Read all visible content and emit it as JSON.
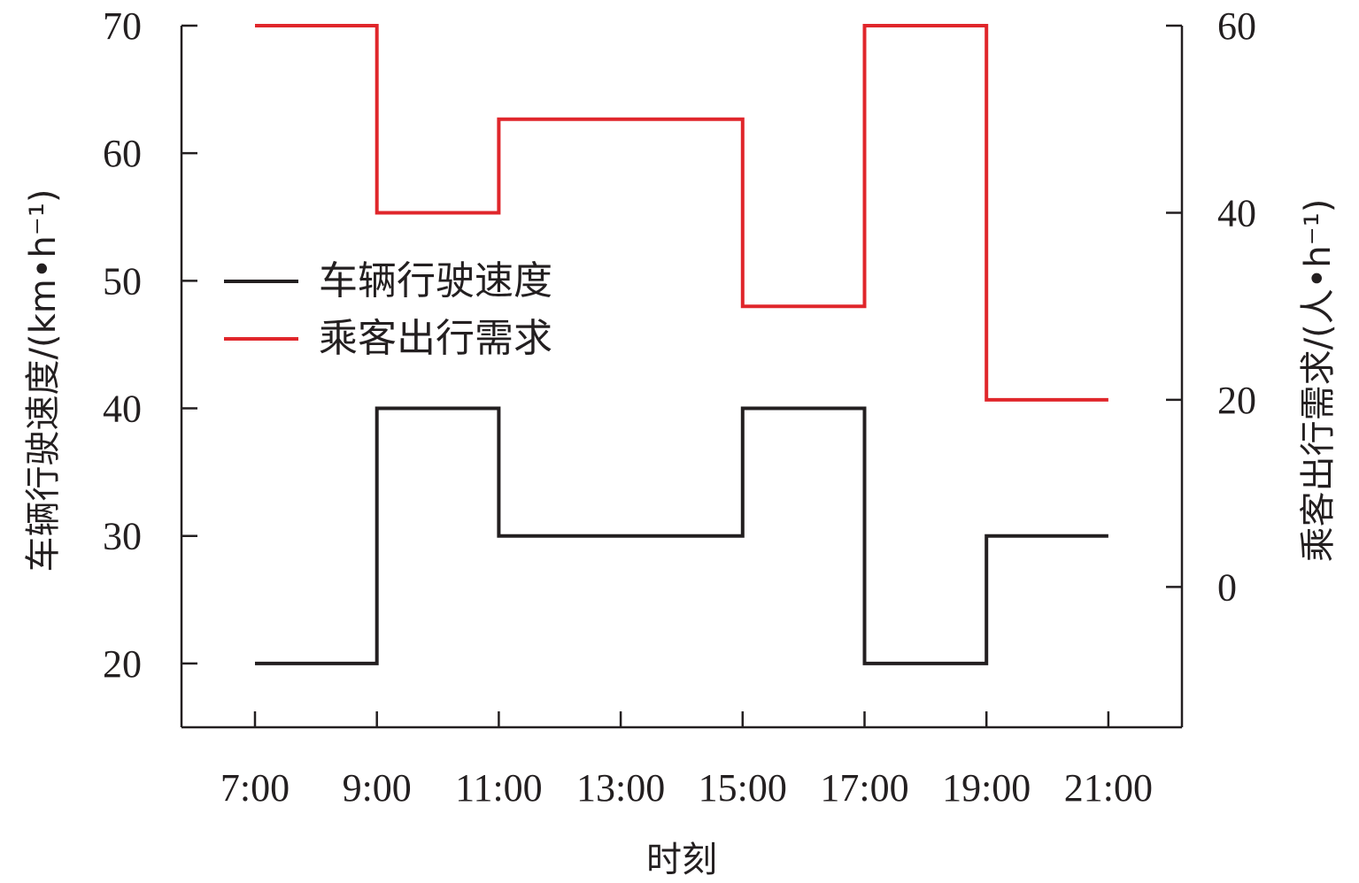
{
  "chart_data": {
    "type": "line",
    "step": true,
    "title": "",
    "x_categories": [
      "7:00",
      "9:00",
      "11:00",
      "13:00",
      "15:00",
      "17:00",
      "19:00",
      "21:00"
    ],
    "xlabel": "时刻",
    "ylabel_left": "车辆行驶速度/(km•h⁻¹)",
    "ylabel_right": "乘客出行需求/(人•h⁻¹)",
    "ylim_left": [
      15,
      70
    ],
    "yticks_left": [
      20,
      30,
      40,
      50,
      60,
      70
    ],
    "ylim_right": [
      -15,
      60
    ],
    "yticks_right": [
      0,
      20,
      40,
      60
    ],
    "grid": false,
    "legend_position": "center-left",
    "series": [
      {
        "name": "车辆行驶速度",
        "axis": "left",
        "color": "#231f20",
        "steps": [
          {
            "from": "7:00",
            "to": "9:00",
            "value": 20
          },
          {
            "from": "9:00",
            "to": "11:00",
            "value": 40
          },
          {
            "from": "11:00",
            "to": "15:00",
            "value": 30
          },
          {
            "from": "15:00",
            "to": "17:00",
            "value": 40
          },
          {
            "from": "17:00",
            "to": "19:00",
            "value": 20
          },
          {
            "from": "19:00",
            "to": "21:00",
            "value": 30
          }
        ]
      },
      {
        "name": "乘客出行需求",
        "axis": "right",
        "color": "#e0262b",
        "steps": [
          {
            "from": "7:00",
            "to": "9:00",
            "value": 60
          },
          {
            "from": "9:00",
            "to": "11:00",
            "value": 40
          },
          {
            "from": "11:00",
            "to": "15:00",
            "value": 50
          },
          {
            "from": "15:00",
            "to": "17:00",
            "value": 30
          },
          {
            "from": "17:00",
            "to": "19:00",
            "value": 60
          },
          {
            "from": "19:00",
            "to": "21:00",
            "value": 20
          }
        ]
      }
    ]
  }
}
